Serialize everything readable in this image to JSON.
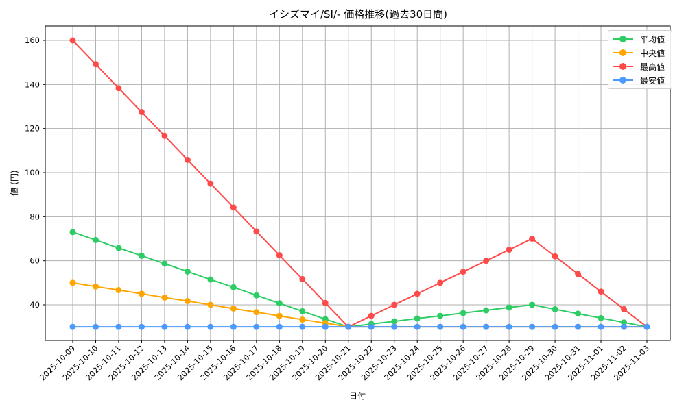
{
  "chart_data": {
    "type": "line",
    "title": "イシズマイ/SI/- 価格推移(過去30日間)",
    "xlabel": "日付",
    "ylabel": "値 (円)",
    "ylim": [
      23.5,
      166.5
    ],
    "yticks": [
      40,
      60,
      80,
      100,
      120,
      140,
      160
    ],
    "grid": true,
    "legend_position": "upper right",
    "categories": [
      "2025-10-09",
      "2025-10-10",
      "2025-10-11",
      "2025-10-12",
      "2025-10-13",
      "2025-10-14",
      "2025-10-15",
      "2025-10-16",
      "2025-10-17",
      "2025-10-18",
      "2025-10-19",
      "2025-10-20",
      "2025-10-21",
      "2025-10-22",
      "2025-10-23",
      "2025-10-24",
      "2025-10-25",
      "2025-10-26",
      "2025-10-27",
      "2025-10-28",
      "2025-10-29",
      "2025-10-30",
      "2025-10-31",
      "2025-11-01",
      "2025-11-02",
      "2025-11-03"
    ],
    "series": [
      {
        "name": "平均値",
        "color": "#2ecc64",
        "values": [
          73,
          69.4,
          65.8,
          62.3,
          58.7,
          55.1,
          51.5,
          48,
          44.3,
          40.7,
          37.1,
          33.5,
          30,
          31.3,
          32.5,
          33.8,
          35,
          36.3,
          37.5,
          38.8,
          40,
          38,
          36,
          34,
          32,
          30
        ]
      },
      {
        "name": "中央値",
        "color": "#ffa500",
        "values": [
          50,
          48.3,
          46.7,
          45,
          43.3,
          41.7,
          40,
          38.3,
          36.7,
          35,
          33.3,
          31.7,
          30,
          30,
          30,
          30,
          30,
          30,
          30,
          30,
          30,
          30,
          30,
          30,
          30,
          30
        ]
      },
      {
        "name": "最高値",
        "color": "#ff4a4a",
        "values": [
          160,
          149.2,
          138.3,
          127.5,
          116.7,
          105.8,
          95,
          84.2,
          73.3,
          62.5,
          51.7,
          40.8,
          30,
          35,
          40,
          45,
          50,
          55,
          60,
          65,
          70,
          62,
          54,
          46,
          38,
          30
        ]
      },
      {
        "name": "最安値",
        "color": "#4c9aff",
        "values": [
          30,
          30,
          30,
          30,
          30,
          30,
          30,
          30,
          30,
          30,
          30,
          30,
          30,
          30,
          30,
          30,
          30,
          30,
          30,
          30,
          30,
          30,
          30,
          30,
          30,
          30
        ]
      }
    ]
  }
}
